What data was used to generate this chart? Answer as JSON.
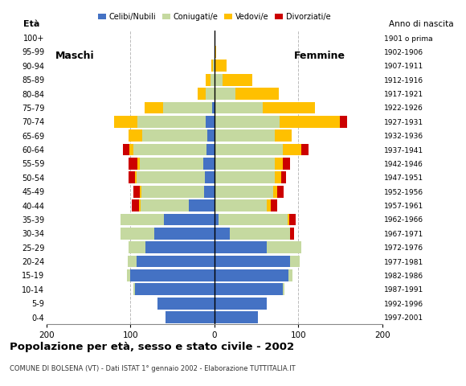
{
  "age_groups": [
    "0-4",
    "5-9",
    "10-14",
    "15-19",
    "20-24",
    "25-29",
    "30-34",
    "35-39",
    "40-44",
    "45-49",
    "50-54",
    "55-59",
    "60-64",
    "65-69",
    "70-74",
    "75-79",
    "80-84",
    "85-89",
    "90-94",
    "95-99",
    "100+"
  ],
  "birth_years": [
    "1997-2001",
    "1992-1996",
    "1987-1991",
    "1982-1986",
    "1977-1981",
    "1972-1976",
    "1967-1971",
    "1962-1966",
    "1957-1961",
    "1952-1956",
    "1947-1951",
    "1942-1946",
    "1937-1941",
    "1932-1936",
    "1927-1931",
    "1922-1926",
    "1917-1921",
    "1912-1916",
    "1907-1911",
    "1902-1906",
    "1901 o prima"
  ],
  "males": {
    "celibi": [
      58,
      68,
      95,
      100,
      93,
      82,
      72,
      60,
      30,
      12,
      11,
      13,
      9,
      8,
      10,
      3,
      0,
      0,
      0,
      0,
      0
    ],
    "coniugati": [
      0,
      0,
      2,
      4,
      10,
      20,
      40,
      52,
      58,
      75,
      82,
      76,
      88,
      78,
      82,
      58,
      10,
      5,
      2,
      0,
      0
    ],
    "vedovi": [
      0,
      0,
      0,
      0,
      0,
      0,
      0,
      0,
      2,
      2,
      2,
      3,
      4,
      16,
      28,
      22,
      10,
      5,
      2,
      0,
      0
    ],
    "divorziati": [
      0,
      0,
      0,
      0,
      0,
      0,
      0,
      0,
      8,
      8,
      7,
      10,
      8,
      0,
      0,
      0,
      0,
      0,
      0,
      0,
      0
    ]
  },
  "females": {
    "nubili": [
      52,
      62,
      82,
      88,
      90,
      62,
      18,
      5,
      0,
      0,
      0,
      0,
      0,
      0,
      0,
      0,
      0,
      0,
      0,
      0,
      0
    ],
    "coniugate": [
      0,
      0,
      2,
      5,
      12,
      42,
      72,
      82,
      62,
      70,
      72,
      72,
      82,
      72,
      78,
      58,
      25,
      10,
      0,
      0,
      0
    ],
    "vedove": [
      0,
      0,
      0,
      0,
      0,
      0,
      0,
      2,
      5,
      5,
      8,
      10,
      22,
      20,
      72,
      62,
      52,
      35,
      15,
      2,
      0
    ],
    "divorziate": [
      0,
      0,
      0,
      0,
      0,
      0,
      5,
      8,
      8,
      8,
      5,
      8,
      8,
      0,
      8,
      0,
      0,
      0,
      0,
      0,
      0
    ]
  },
  "colors": {
    "celibi": "#4472c4",
    "coniugati": "#c5d9a0",
    "vedovi": "#ffc000",
    "divorziati": "#cc0000"
  },
  "xlim": 200,
  "title": "Popolazione per età, sesso e stato civile - 2002",
  "subtitle": "COMUNE DI BOLSENA (VT) - Dati ISTAT 1° gennaio 2002 - Elaborazione TUTTITALIA.IT",
  "ylabel_left": "Età",
  "ylabel_right": "Anno di nascita",
  "label_maschi": "Maschi",
  "label_femmine": "Femmine",
  "legend_labels": [
    "Celibi/Nubili",
    "Coniugati/e",
    "Vedovi/e",
    "Divorziati/e"
  ],
  "bg_color": "#ffffff",
  "bar_height": 0.85
}
